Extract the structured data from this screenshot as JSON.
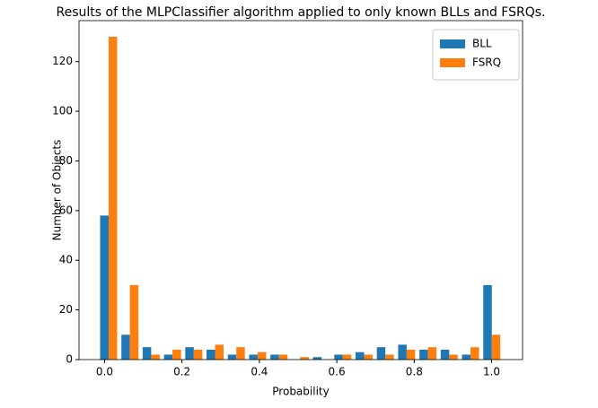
{
  "chart_data": {
    "type": "histogram",
    "title": "Results of the MLPClassifier algorithm applied to only known BLLs and FSRQs.",
    "xlabel": "Probability",
    "ylabel": "Number of Objects",
    "bins": [
      -0.017,
      0.038,
      0.093,
      0.148,
      0.203,
      0.258,
      0.313,
      0.368,
      0.423,
      0.478,
      0.533,
      0.588,
      0.643,
      0.698,
      0.753,
      0.808,
      0.863,
      0.918,
      0.973,
      1.028
    ],
    "series": [
      {
        "name": "BLL",
        "color": "#1f77b4",
        "values": [
          58,
          10,
          5,
          2,
          5,
          4,
          2,
          2,
          2,
          0,
          1,
          2,
          3,
          5,
          6,
          4,
          4,
          2,
          30
        ]
      },
      {
        "name": "FSRQ",
        "color": "#ff7f0e",
        "values": [
          130,
          30,
          2,
          4,
          4,
          6,
          5,
          3,
          2,
          1,
          0,
          2,
          2,
          2,
          4,
          5,
          2,
          5,
          10
        ]
      }
    ],
    "xlim": [
      -0.066,
      1.08
    ],
    "ylim": [
      0,
      136.5
    ],
    "xticks": [
      {
        "value": 0,
        "label": "0.0"
      },
      0.2,
      0.4,
      0.6,
      0.8,
      {
        "value": 1,
        "label": "1.0"
      }
    ],
    "yticks": [
      0,
      20,
      40,
      60,
      80,
      100,
      120
    ],
    "legend": "upper right"
  }
}
